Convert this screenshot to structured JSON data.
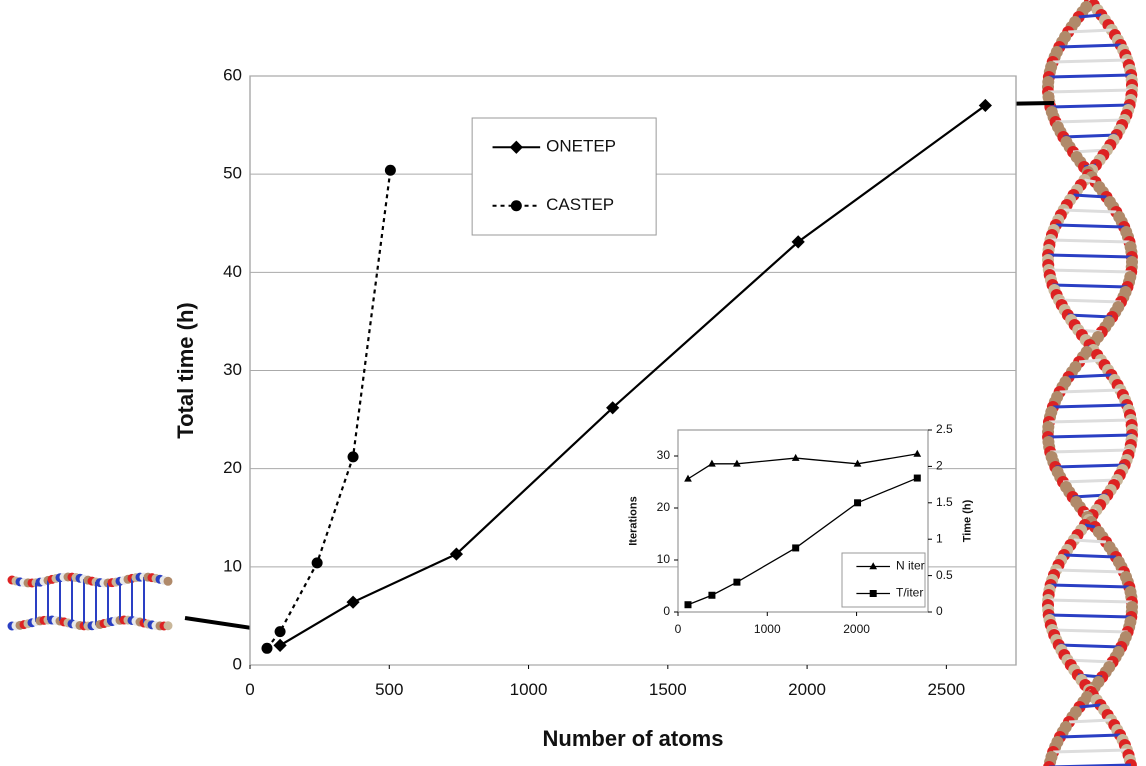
{
  "chart_data": [
    {
      "type": "line",
      "x_label": "Number of atoms",
      "y_label": "Total time (h)",
      "xlim": [
        0,
        2750
      ],
      "xticks": [
        0,
        500,
        1000,
        1500,
        2000,
        2500
      ],
      "ylim": [
        0,
        60
      ],
      "yticks": [
        0,
        10,
        20,
        30,
        40,
        50,
        60
      ],
      "grid": true,
      "legend": "upper center",
      "series": [
        {
          "name": "ONETEP",
          "color": "#000000",
          "marker": "diamond",
          "line_style": "solid",
          "x": [
            108,
            370,
            741,
            1302,
            1968,
            2640
          ],
          "values": [
            2.0,
            6.4,
            11.3,
            26.2,
            43.1,
            57.0
          ]
        },
        {
          "name": "CASTEP",
          "color": "#000000",
          "marker": "circle",
          "line_style": "dotted",
          "x": [
            61,
            108,
            241,
            370,
            504
          ],
          "values": [
            1.7,
            3.4,
            10.4,
            21.2,
            50.4
          ]
        }
      ]
    },
    {
      "type": "line",
      "y_label": "Iterations",
      "y2_label": "Time (h)",
      "xlim": [
        0,
        2800
      ],
      "xticks": [
        0,
        1000,
        2000
      ],
      "ylim": [
        0,
        35
      ],
      "yticks": [
        0,
        10,
        20,
        30
      ],
      "y2lim": [
        0,
        2.5
      ],
      "y2ticks": [
        0,
        0.5,
        1,
        1.5,
        2,
        2.5
      ],
      "grid": false,
      "legend": "lower right",
      "series": [
        {
          "name": "N iter",
          "color": "#000000",
          "marker": "triangle",
          "line_style": "solid",
          "x": [
            112,
            380,
            660,
            1318,
            2011,
            2680
          ],
          "values": [
            25.6,
            28.5,
            28.5,
            29.6,
            28.5,
            30.4
          ]
        },
        {
          "name": "T/iter",
          "color": "#000000",
          "marker": "square",
          "line_style": "solid",
          "axis": "y2",
          "x": [
            112,
            380,
            660,
            1318,
            2011,
            2680
          ],
          "values": [
            0.1,
            0.23,
            0.41,
            0.88,
            1.5,
            1.84
          ]
        }
      ]
    }
  ]
}
